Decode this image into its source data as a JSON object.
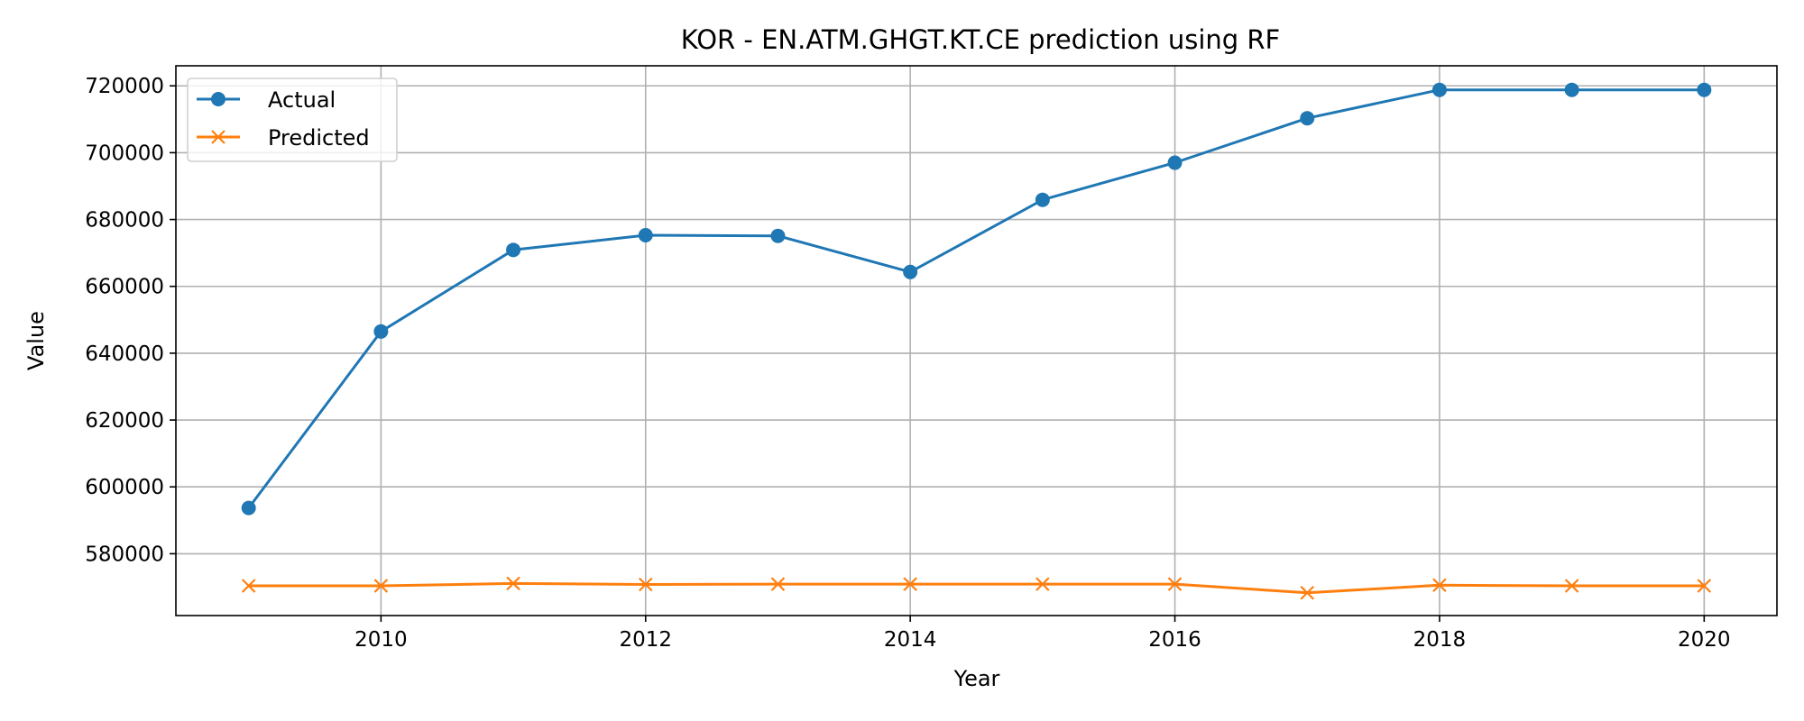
{
  "chart_data": {
    "type": "line",
    "title": "KOR - EN.ATM.GHGT.KT.CE prediction using RF",
    "xlabel": "Year",
    "ylabel": "Value",
    "x": [
      2009,
      2010,
      2011,
      2012,
      2013,
      2014,
      2015,
      2016,
      2017,
      2018,
      2019,
      2020
    ],
    "xlim": [
      2008.45,
      2020.55
    ],
    "ylim": [
      561500,
      726000
    ],
    "xticks": [
      2010,
      2012,
      2014,
      2016,
      2018,
      2020
    ],
    "yticks": [
      580000,
      600000,
      620000,
      640000,
      660000,
      680000,
      700000,
      720000
    ],
    "grid": true,
    "legend_position": "top-left",
    "series": [
      {
        "name": "Actual",
        "color": "#1f77b4",
        "marker": "circle",
        "values": [
          593700,
          646500,
          670900,
          675300,
          675100,
          664300,
          685900,
          697000,
          710300,
          718800,
          718800,
          718800
        ]
      },
      {
        "name": "Predicted",
        "color": "#ff7f0e",
        "marker": "x",
        "values": [
          570400,
          570400,
          571100,
          570800,
          570900,
          570900,
          570900,
          570900,
          568300,
          570600,
          570400,
          570400
        ]
      }
    ]
  }
}
